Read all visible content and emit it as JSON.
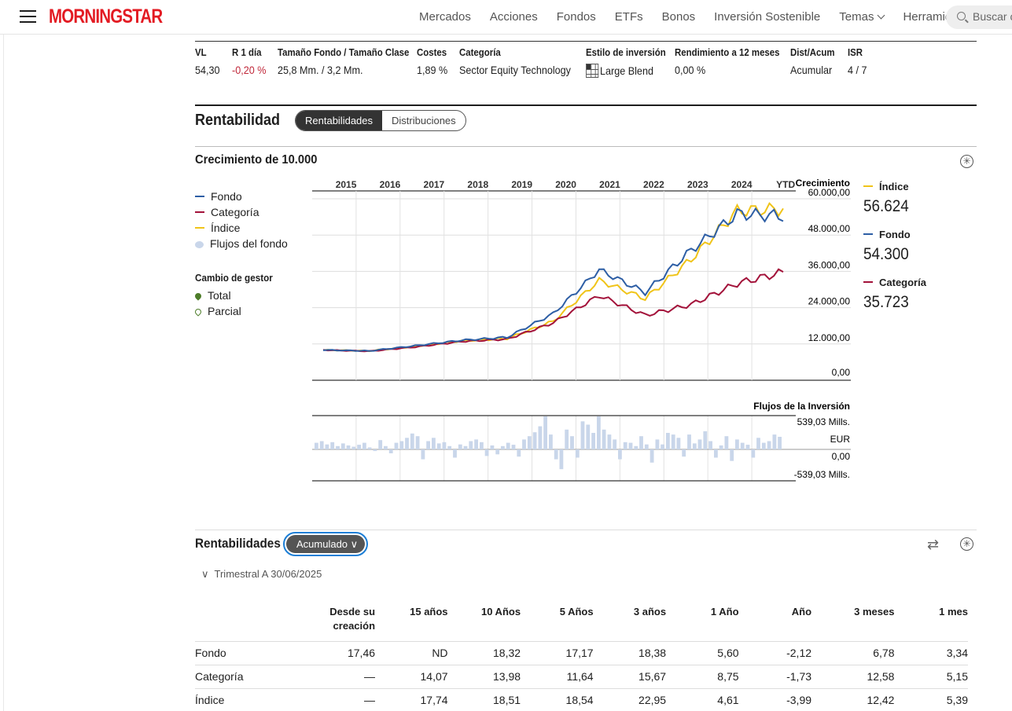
{
  "nav": {
    "logo": "MORNINGSTAR",
    "links": [
      "Mercados",
      "Acciones",
      "Fondos",
      "ETFs",
      "Bonos",
      "Inversión Sostenible",
      "Temas",
      "Herramientas"
    ],
    "search_placeholder": "Buscar c"
  },
  "quote": [
    {
      "label": "VL",
      "value": "54,30"
    },
    {
      "label": "R 1 día",
      "value": "-0,20 %"
    },
    {
      "label": "Tamaño Fondo / Tamaño Clase",
      "value": "25,8 Mm. / 3,2 Mm."
    },
    {
      "label": "Costes",
      "value": "1,89 %"
    },
    {
      "label": "Categoría",
      "value": "Sector Equity Technology"
    },
    {
      "label": "Estilo de inversión",
      "value": "Large Blend"
    },
    {
      "label": "Rendimiento a 12 meses",
      "value": "0,00 %"
    },
    {
      "label": "Dist/Acum",
      "value": "Acumular"
    },
    {
      "label": "ISR",
      "value": "4 / 7"
    }
  ],
  "rentabilidad": {
    "title": "Rentabilidad",
    "tabs": [
      "Rentabilidades",
      "Distribuciones"
    ],
    "active_tab": "Rentabilidades"
  },
  "growth": {
    "title": "Crecimiento de 10.000",
    "legend": [
      "Fondo",
      "Categoría",
      "Índice",
      "Flujos del fondo"
    ],
    "manager_change_title": "Cambio de gestor",
    "manager_change": [
      "Total",
      "Parcial"
    ],
    "right_legend": [
      {
        "name": "Índice",
        "value": "56.624",
        "color": "#f0c419"
      },
      {
        "name": "Fondo",
        "value": "54.300",
        "color": "#2d5ea5"
      },
      {
        "name": "Categoría",
        "value": "35.723",
        "color": "#a3123a"
      }
    ]
  },
  "chart_data": [
    {
      "type": "line",
      "ylabel": "Crecimiento",
      "x": [
        "2015",
        "2016",
        "2017",
        "2018",
        "2019",
        "2020",
        "2021",
        "2022",
        "2023",
        "2024",
        "YTD"
      ],
      "y_ticks": [
        "60.000,00",
        "48.000,00",
        "36.000,00",
        "24.000,00",
        "12.000,00",
        "0,00"
      ],
      "ylim": [
        0,
        60000
      ],
      "colors": {
        "Fondo": "#2d5ea5",
        "Categoría": "#a3123a",
        "Índice": "#f0c419"
      },
      "series": [
        {
          "name": "Fondo",
          "values": [
            10000,
            9700,
            11400,
            13200,
            14200,
            22000,
            36500,
            29000,
            43000,
            55000,
            54300
          ]
        },
        {
          "name": "Categoría",
          "values": [
            10000,
            9600,
            11000,
            12800,
            13600,
            19000,
            28000,
            21500,
            25000,
            32000,
            35723
          ]
        },
        {
          "name": "Índice",
          "values": [
            10000,
            9700,
            11200,
            13000,
            13800,
            19500,
            33000,
            27000,
            40000,
            56000,
            56624
          ]
        }
      ]
    },
    {
      "type": "bar",
      "title": "Flujos de la Inversión",
      "y_ticks": [
        "539,03 Mills.",
        "EUR",
        "0,00",
        "-539,03 Mills."
      ],
      "ylim": [
        -539.03,
        539.03
      ],
      "values": [
        20,
        25,
        15,
        22,
        10,
        18,
        12,
        8,
        14,
        20,
        6,
        -5,
        28,
        10,
        -12,
        20,
        25,
        35,
        48,
        40,
        -30,
        25,
        35,
        18,
        22,
        10,
        -25,
        15,
        10,
        25,
        30,
        22,
        -20,
        12,
        -15,
        10,
        20,
        14,
        -22,
        30,
        40,
        52,
        70,
        100,
        45,
        -30,
        -60,
        60,
        40,
        -25,
        85,
        75,
        50,
        100,
        60,
        45,
        30,
        -30,
        22,
        20,
        10,
        40,
        15,
        -40,
        30,
        15,
        50,
        45,
        35,
        -22,
        45,
        18,
        30,
        55,
        25,
        -25,
        12,
        40,
        -35,
        30,
        20,
        14,
        -25,
        35,
        20,
        25,
        45,
        38
      ]
    }
  ],
  "returns": {
    "title": "Rentabilidades",
    "dropdown": "Acumulado",
    "period": "Trimestral A 30/06/2025",
    "columns": [
      "",
      "Desde su creación",
      "15 años",
      "10 Años",
      "5 Años",
      "3 años",
      "1 Año",
      "Año",
      "3 meses",
      "1 mes"
    ],
    "rows": [
      [
        "Fondo",
        "17,46",
        "ND",
        "18,32",
        "17,17",
        "18,38",
        "5,60",
        "-2,12",
        "6,78",
        "3,34"
      ],
      [
        "Categoría",
        "—",
        "14,07",
        "13,98",
        "11,64",
        "15,67",
        "8,75",
        "-1,73",
        "12,58",
        "5,15"
      ],
      [
        "Índice",
        "—",
        "17,74",
        "18,51",
        "18,54",
        "22,95",
        "4,61",
        "-3,99",
        "12,42",
        "5,39"
      ]
    ]
  }
}
